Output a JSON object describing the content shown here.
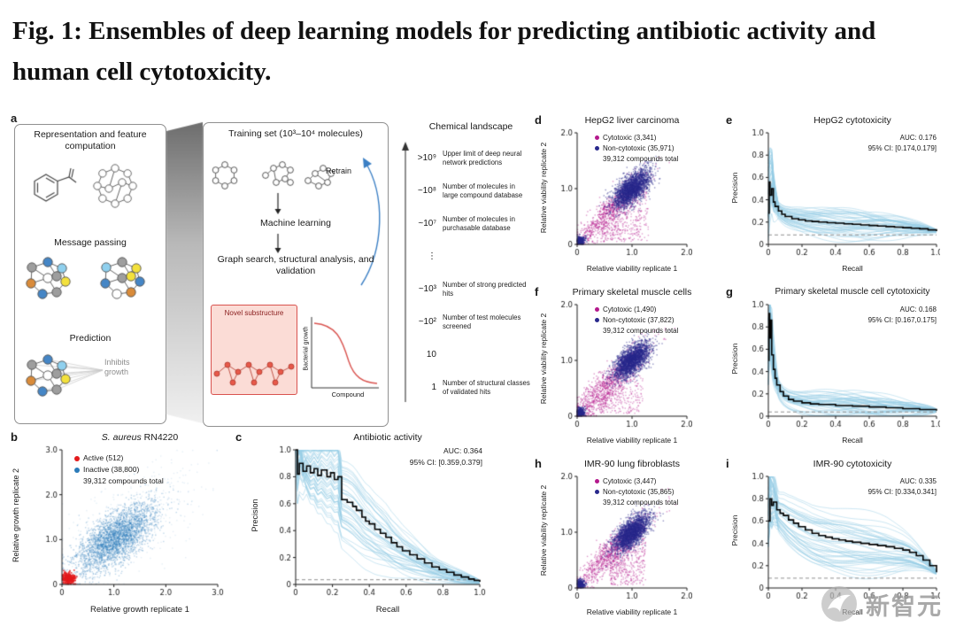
{
  "title": "Fig. 1: Ensembles of deep learning models for predicting antibiotic activity and human cell cytotoxicity.",
  "watermark": "新智元",
  "panel_a": {
    "label": "a",
    "representation_label": "Representation and feature computation",
    "message_passing_label": "Message passing",
    "prediction_label": "Prediction",
    "inhibits_growth_label": "Inhibits growth",
    "training_set_label": "Training set (10³–10⁴ molecules)",
    "retrain_label": "Retrain",
    "machine_learning_label": "Machine learning",
    "graph_search_label": "Graph search, structural analysis, and validation",
    "novel_substructure_label": "Novel substructure",
    "bacterial_growth_label": "Bacterial growth",
    "compound_label": "Compound",
    "chemical_landscape": {
      "title": "Chemical landscape",
      "rows": [
        {
          "value": ">10⁹",
          "label": "Upper limit of deep neural network predictions"
        },
        {
          "value": "~10⁸",
          "label": "Number of molecules in large compound database"
        },
        {
          "value": "~10⁷",
          "label": "Number of molecules in purchasable database"
        },
        {
          "value": "⋮",
          "label": ""
        },
        {
          "value": "~10³",
          "label": "Number of strong predicted hits"
        },
        {
          "value": "~10²",
          "label": "Number of test molecules screened"
        },
        {
          "value": "10",
          "label": ""
        },
        {
          "value": "1",
          "label": "Number of structural classes of validated hits"
        }
      ]
    }
  },
  "chart_data": [
    {
      "panel": "b",
      "type": "scatter",
      "title_italic": "S. aureus",
      "title_rest": " RN4220",
      "xlabel": "Relative growth replicate 1",
      "ylabel": "Relative growth replicate 2",
      "xlim": [
        0,
        3
      ],
      "ylim": [
        0,
        3
      ],
      "xticks": [
        "0",
        "1.0",
        "2.0",
        "3.0"
      ],
      "yticks": [
        "0",
        "1.0",
        "2.0",
        "3.0"
      ],
      "legend": [
        {
          "label": "Active (512)",
          "color": "#e31a1c"
        },
        {
          "label": "Inactive (38,800)",
          "color": "#2b7bb9"
        },
        {
          "label": "39,312 compounds total",
          "color": null
        }
      ],
      "seed": 11,
      "clusters": [
        {
          "color": "#2b7bb9",
          "n": 3200,
          "alpha": 0.3,
          "size": 1.4,
          "gen": {
            "kind": "diag",
            "center": 1.05,
            "spread": 0.3,
            "noise": 0.22
          }
        },
        {
          "color": "#2b7bb9",
          "n": 500,
          "alpha": 0.13,
          "size": 1.4,
          "gen": {
            "kind": "diag",
            "center": 1.25,
            "spread": 0.55,
            "noise": 0.4
          }
        },
        {
          "color": "#e31a1c",
          "n": 300,
          "alpha": 0.8,
          "size": 1.7,
          "gen": {
            "kind": "blob",
            "cx": 0.13,
            "cy": 0.13,
            "sx": 0.06,
            "sy": 0.06
          }
        }
      ]
    },
    {
      "panel": "c",
      "type": "pr",
      "title": "Antibiotic activity",
      "auc": "AUC: 0.364",
      "ci": "95% CI: [0.359,0.379]",
      "xlabel": "Recall",
      "ylabel": "Precision",
      "xlim": [
        0,
        1
      ],
      "ylim": [
        0,
        1
      ],
      "xticks": [
        "0",
        "0.2",
        "0.4",
        "0.6",
        "0.8",
        "1.0"
      ],
      "yticks": [
        "0",
        "0.2",
        "0.4",
        "0.6",
        "0.8",
        "1.0"
      ],
      "baseline": 0.035,
      "seed": 21,
      "n_ensemble": 45,
      "main_curve": [
        [
          0,
          1.0
        ],
        [
          0.01,
          0.82
        ],
        [
          0.02,
          0.9
        ],
        [
          0.04,
          0.84
        ],
        [
          0.06,
          0.88
        ],
        [
          0.08,
          0.83
        ],
        [
          0.1,
          0.86
        ],
        [
          0.12,
          0.81
        ],
        [
          0.14,
          0.85
        ],
        [
          0.17,
          0.8
        ],
        [
          0.19,
          0.83
        ],
        [
          0.21,
          0.78
        ],
        [
          0.23,
          0.8
        ],
        [
          0.25,
          0.63
        ],
        [
          0.28,
          0.61
        ],
        [
          0.31,
          0.58
        ],
        [
          0.33,
          0.55
        ],
        [
          0.36,
          0.5
        ],
        [
          0.38,
          0.47
        ],
        [
          0.4,
          0.45
        ],
        [
          0.43,
          0.41
        ],
        [
          0.46,
          0.38
        ],
        [
          0.49,
          0.35
        ],
        [
          0.52,
          0.31
        ],
        [
          0.55,
          0.28
        ],
        [
          0.58,
          0.25
        ],
        [
          0.62,
          0.22
        ],
        [
          0.66,
          0.19
        ],
        [
          0.7,
          0.16
        ],
        [
          0.74,
          0.13
        ],
        [
          0.78,
          0.11
        ],
        [
          0.82,
          0.09
        ],
        [
          0.86,
          0.07
        ],
        [
          0.9,
          0.055
        ],
        [
          0.94,
          0.04
        ],
        [
          0.97,
          0.03
        ],
        [
          1,
          0.02
        ]
      ]
    },
    {
      "panel": "d",
      "type": "scatter",
      "title": "HepG2 liver carcinoma",
      "xlabel": "Relative viability replicate 1",
      "ylabel": "Relative viability replicate 2",
      "xlim": [
        0,
        2
      ],
      "ylim": [
        0,
        2
      ],
      "xticks": [
        "0",
        "1.0",
        "2.0"
      ],
      "yticks": [
        "0",
        "1.0",
        "2.0"
      ],
      "legend": [
        {
          "label": "Cytotoxic (3,341)",
          "color": "#b4198c"
        },
        {
          "label": "Non-cytotoxic (35,971)",
          "color": "#28288c"
        },
        {
          "label": "39,312 compounds total",
          "color": null
        }
      ],
      "seed": 31,
      "clusters": [
        {
          "color": "#b4198c",
          "n": 800,
          "alpha": 0.45,
          "size": 1.4,
          "gen": {
            "kind": "diag",
            "center": 0.6,
            "spread": 0.3,
            "noise": 0.1
          }
        },
        {
          "color": "#b4198c",
          "n": 350,
          "alpha": 0.4,
          "size": 1.4,
          "gen": {
            "kind": "wedge",
            "x0": 0.45,
            "x1": 1.3,
            "yfrac": 0.8
          }
        },
        {
          "color": "#28288c",
          "n": 2400,
          "alpha": 0.5,
          "size": 1.4,
          "gen": {
            "kind": "diag",
            "center": 1.0,
            "spread": 0.13,
            "noise": 0.1
          }
        },
        {
          "color": "#28288c",
          "n": 220,
          "alpha": 0.7,
          "size": 1.5,
          "gen": {
            "kind": "blob",
            "cx": 0.06,
            "cy": 0.07,
            "sx": 0.04,
            "sy": 0.04
          }
        }
      ]
    },
    {
      "panel": "e",
      "type": "pr",
      "title": "HepG2 cytotoxicity",
      "auc": "AUC: 0.176",
      "ci": "95% CI: [0.174,0.179]",
      "xlabel": "Recall",
      "ylabel": "Precision",
      "xlim": [
        0,
        1
      ],
      "ylim": [
        0,
        1
      ],
      "xticks": [
        "0",
        "0.2",
        "0.4",
        "0.6",
        "0.8",
        "1.0"
      ],
      "yticks": [
        "0",
        "0.2",
        "0.4",
        "0.6",
        "0.8",
        "1.0"
      ],
      "baseline": 0.085,
      "seed": 41,
      "n_ensemble": 42,
      "main_curve": [
        [
          0,
          0.28
        ],
        [
          0.005,
          0.56
        ],
        [
          0.01,
          0.44
        ],
        [
          0.02,
          0.5
        ],
        [
          0.03,
          0.38
        ],
        [
          0.04,
          0.34
        ],
        [
          0.06,
          0.3
        ],
        [
          0.08,
          0.27
        ],
        [
          0.1,
          0.25
        ],
        [
          0.14,
          0.23
        ],
        [
          0.18,
          0.22
        ],
        [
          0.22,
          0.21
        ],
        [
          0.26,
          0.205
        ],
        [
          0.3,
          0.2
        ],
        [
          0.35,
          0.195
        ],
        [
          0.4,
          0.19
        ],
        [
          0.45,
          0.185
        ],
        [
          0.5,
          0.18
        ],
        [
          0.55,
          0.175
        ],
        [
          0.6,
          0.17
        ],
        [
          0.65,
          0.165
        ],
        [
          0.7,
          0.16
        ],
        [
          0.75,
          0.155
        ],
        [
          0.8,
          0.15
        ],
        [
          0.85,
          0.145
        ],
        [
          0.9,
          0.14
        ],
        [
          0.95,
          0.13
        ],
        [
          1,
          0.12
        ]
      ]
    },
    {
      "panel": "f",
      "type": "scatter",
      "title": "Primary skeletal muscle cells",
      "xlabel": "Relative viability replicate 1",
      "ylabel": "Relative viability replicate 2",
      "xlim": [
        0,
        2
      ],
      "ylim": [
        0,
        2
      ],
      "xticks": [
        "0",
        "1.0",
        "2.0"
      ],
      "yticks": [
        "0",
        "1.0",
        "2.0"
      ],
      "legend": [
        {
          "label": "Cytotoxic (1,490)",
          "color": "#b4198c"
        },
        {
          "label": "Non-cytotoxic (37,822)",
          "color": "#28288c"
        },
        {
          "label": "39,312 compounds total",
          "color": null
        }
      ],
      "seed": 51,
      "clusters": [
        {
          "color": "#b4198c",
          "n": 1000,
          "alpha": 0.45,
          "size": 1.4,
          "gen": {
            "kind": "diag",
            "center": 0.5,
            "spread": 0.35,
            "noise": 0.12
          }
        },
        {
          "color": "#b4198c",
          "n": 250,
          "alpha": 0.4,
          "size": 1.4,
          "gen": {
            "kind": "wedge",
            "x0": 0.4,
            "x1": 1.2,
            "yfrac": 0.75
          }
        },
        {
          "color": "#28288c",
          "n": 2400,
          "alpha": 0.5,
          "size": 1.4,
          "gen": {
            "kind": "diag",
            "center": 1.0,
            "spread": 0.13,
            "noise": 0.1
          }
        },
        {
          "color": "#28288c",
          "n": 250,
          "alpha": 0.7,
          "size": 1.5,
          "gen": {
            "kind": "blob",
            "cx": 0.06,
            "cy": 0.07,
            "sx": 0.04,
            "sy": 0.04
          }
        }
      ]
    },
    {
      "panel": "g",
      "type": "pr",
      "title": "Primary skeletal muscle cell cytotoxicity",
      "auc": "AUC: 0.168",
      "ci": "95% CI: [0.167,0.175]",
      "xlabel": "Recall",
      "ylabel": "Precision",
      "xlim": [
        0,
        1
      ],
      "ylim": [
        0,
        1
      ],
      "xticks": [
        "0",
        "0.2",
        "0.4",
        "0.6",
        "0.8",
        "1.0"
      ],
      "yticks": [
        "0",
        "0.2",
        "0.4",
        "0.6",
        "0.8",
        "1.0"
      ],
      "baseline": 0.038,
      "seed": 61,
      "n_ensemble": 42,
      "main_curve": [
        [
          0,
          0.5
        ],
        [
          0.004,
          0.92
        ],
        [
          0.008,
          0.7
        ],
        [
          0.012,
          0.86
        ],
        [
          0.02,
          0.55
        ],
        [
          0.03,
          0.42
        ],
        [
          0.04,
          0.34
        ],
        [
          0.05,
          0.28
        ],
        [
          0.07,
          0.22
        ],
        [
          0.09,
          0.18
        ],
        [
          0.12,
          0.15
        ],
        [
          0.15,
          0.135
        ],
        [
          0.2,
          0.12
        ],
        [
          0.25,
          0.11
        ],
        [
          0.3,
          0.105
        ],
        [
          0.4,
          0.095
        ],
        [
          0.5,
          0.09
        ],
        [
          0.6,
          0.082
        ],
        [
          0.7,
          0.075
        ],
        [
          0.8,
          0.068
        ],
        [
          0.9,
          0.06
        ],
        [
          1,
          0.05
        ]
      ]
    },
    {
      "panel": "h",
      "type": "scatter",
      "title": "IMR-90 lung fibroblasts",
      "xlabel": "Relative viability replicate 1",
      "ylabel": "Relative viability replicate 2",
      "xlim": [
        0,
        2
      ],
      "ylim": [
        0,
        2
      ],
      "xticks": [
        "0",
        "1.0",
        "2.0"
      ],
      "yticks": [
        "0",
        "1.0",
        "2.0"
      ],
      "legend": [
        {
          "label": "Cytotoxic (3,447)",
          "color": "#b4198c"
        },
        {
          "label": "Non-cytotoxic (35,865)",
          "color": "#28288c"
        },
        {
          "label": "39,312 compounds total",
          "color": null
        }
      ],
      "seed": 71,
      "clusters": [
        {
          "color": "#b4198c",
          "n": 900,
          "alpha": 0.45,
          "size": 1.4,
          "gen": {
            "kind": "diag",
            "center": 0.65,
            "spread": 0.3,
            "noise": 0.1
          }
        },
        {
          "color": "#b4198c",
          "n": 350,
          "alpha": 0.4,
          "size": 1.4,
          "gen": {
            "kind": "wedge",
            "x0": 0.6,
            "x1": 1.25,
            "yfrac": 0.75
          }
        },
        {
          "color": "#28288c",
          "n": 2400,
          "alpha": 0.5,
          "size": 1.4,
          "gen": {
            "kind": "diag",
            "center": 1.0,
            "spread": 0.13,
            "noise": 0.1
          }
        },
        {
          "color": "#28288c",
          "n": 220,
          "alpha": 0.7,
          "size": 1.5,
          "gen": {
            "kind": "blob",
            "cx": 0.06,
            "cy": 0.07,
            "sx": 0.04,
            "sy": 0.04
          }
        }
      ]
    },
    {
      "panel": "i",
      "type": "pr",
      "title": "IMR-90 cytotoxicity",
      "auc": "AUC: 0.335",
      "ci": "95% CI: [0.334,0.341]",
      "xlabel": "Recall",
      "ylabel": "Precision",
      "xlim": [
        0,
        1
      ],
      "ylim": [
        0,
        1
      ],
      "xticks": [
        "0",
        "0.2",
        "0.4",
        "0.6",
        "0.8",
        "1.0"
      ],
      "yticks": [
        "0",
        "0.2",
        "0.4",
        "0.6",
        "0.8",
        "1.0"
      ],
      "baseline": 0.088,
      "seed": 81,
      "n_ensemble": 42,
      "main_curve": [
        [
          0,
          0.6
        ],
        [
          0.01,
          0.8
        ],
        [
          0.02,
          0.74
        ],
        [
          0.03,
          0.77
        ],
        [
          0.05,
          0.7
        ],
        [
          0.07,
          0.67
        ],
        [
          0.09,
          0.65
        ],
        [
          0.12,
          0.61
        ],
        [
          0.15,
          0.58
        ],
        [
          0.18,
          0.55
        ],
        [
          0.22,
          0.52
        ],
        [
          0.26,
          0.49
        ],
        [
          0.3,
          0.47
        ],
        [
          0.34,
          0.455
        ],
        [
          0.38,
          0.44
        ],
        [
          0.42,
          0.43
        ],
        [
          0.46,
          0.42
        ],
        [
          0.5,
          0.41
        ],
        [
          0.55,
          0.4
        ],
        [
          0.6,
          0.39
        ],
        [
          0.65,
          0.38
        ],
        [
          0.7,
          0.37
        ],
        [
          0.75,
          0.355
        ],
        [
          0.8,
          0.34
        ],
        [
          0.84,
          0.32
        ],
        [
          0.88,
          0.29
        ],
        [
          0.92,
          0.25
        ],
        [
          0.96,
          0.2
        ],
        [
          1,
          0.14
        ]
      ]
    }
  ]
}
